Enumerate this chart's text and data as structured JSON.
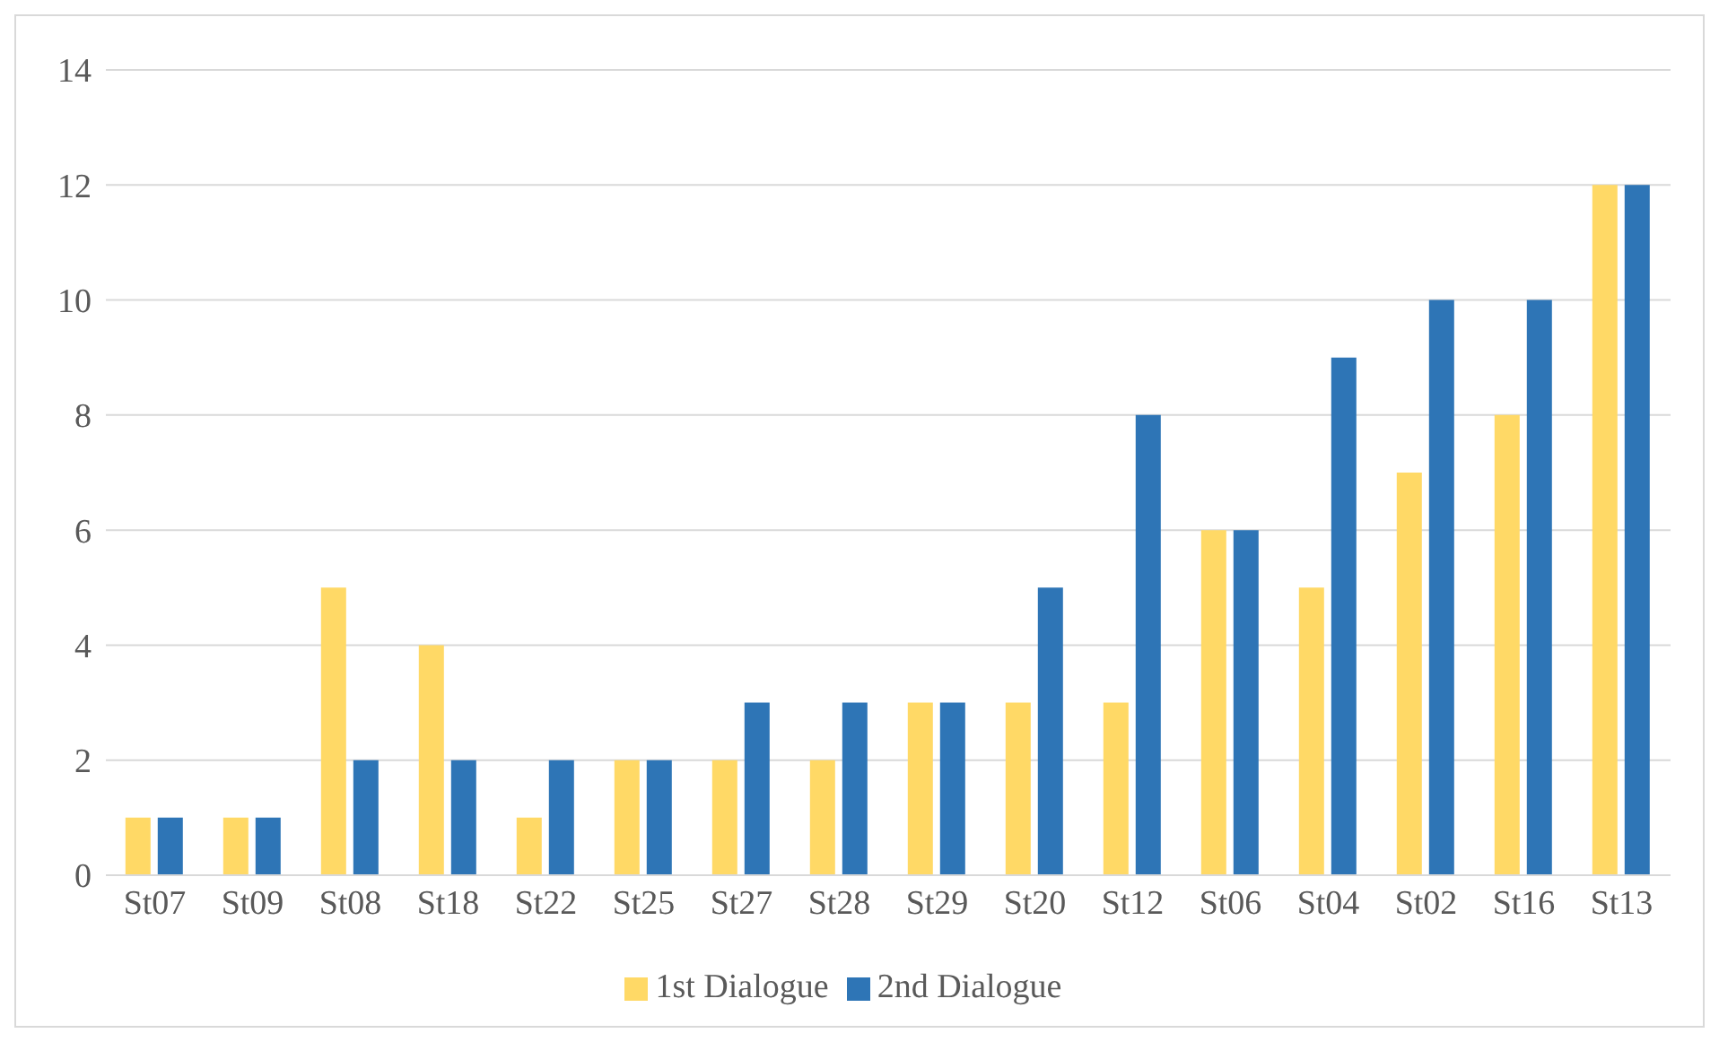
{
  "chart_data": {
    "type": "bar",
    "categories": [
      "St07",
      "St09",
      "St08",
      "St18",
      "St22",
      "St25",
      "St27",
      "St28",
      "St29",
      "St20",
      "St12",
      "St06",
      "St04",
      "St02",
      "St16",
      "St13"
    ],
    "series": [
      {
        "name": "1st Dialogue",
        "color": "#ffd966",
        "values": [
          1,
          1,
          5,
          4,
          1,
          2,
          2,
          2,
          3,
          3,
          3,
          6,
          5,
          7,
          8,
          12
        ]
      },
      {
        "name": "2nd Dialogue",
        "color": "#2e75b6",
        "values": [
          1,
          1,
          2,
          2,
          2,
          2,
          3,
          3,
          3,
          5,
          8,
          6,
          9,
          10,
          10,
          12
        ]
      }
    ],
    "ylim": [
      0,
      14
    ],
    "yticks": [
      0,
      2,
      4,
      6,
      8,
      10,
      12,
      14
    ],
    "grid": "y",
    "legend": "bottom"
  }
}
